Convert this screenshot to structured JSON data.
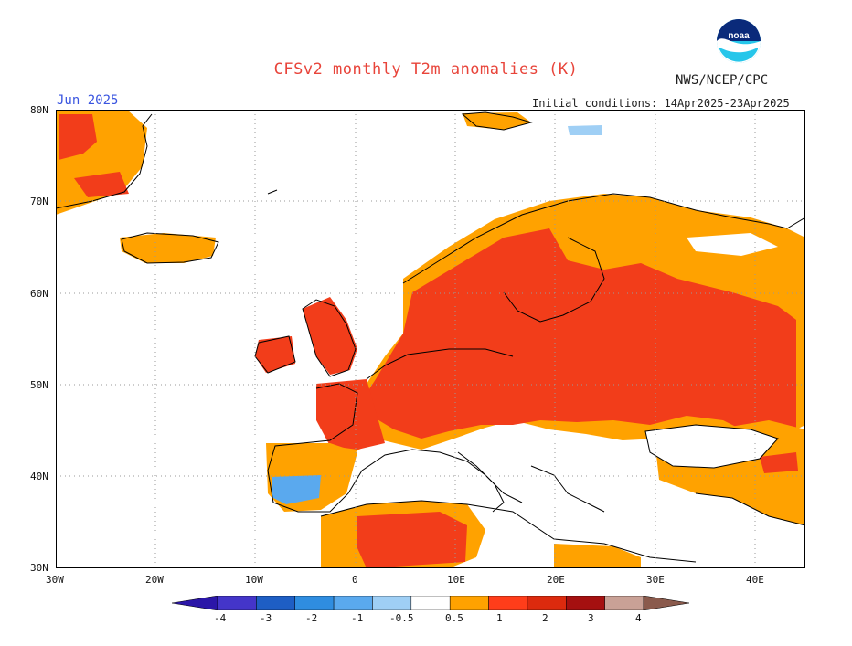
{
  "header": {
    "title": "CFSv2 monthly T2m anomalies (K)",
    "agency": "NWS/NCEP/CPC",
    "valid_month": "Jun 2025",
    "initial_conditions": "Initial conditions: 14Apr2025-23Apr2025"
  },
  "logo": {
    "text": "noaa",
    "icon": "noaa-logo-icon",
    "colors": {
      "blue": "#1f5fbf",
      "cyan": "#26c6ea",
      "navy": "#0a2a7a"
    }
  },
  "map": {
    "region": "Europe",
    "projection": "lat-lon",
    "lon_range": [
      -30,
      45
    ],
    "lat_range": [
      30,
      80
    ],
    "grid": "dotted",
    "lat_labels": [
      "80N",
      "70N",
      "60N",
      "50N",
      "40N",
      "30N"
    ],
    "lon_labels": [
      "30W",
      "20W",
      "10W",
      "0",
      "10E",
      "20E",
      "30E",
      "40E"
    ]
  },
  "colorbar": {
    "ticks": [
      "-4",
      "-3",
      "-2",
      "-1",
      "-0.5",
      "0.5",
      "1",
      "2",
      "3",
      "4"
    ],
    "colors": [
      "#2b16a8",
      "#4435c9",
      "#1e5ec4",
      "#2f8de0",
      "#5aa9ee",
      "#9fcff5",
      "#ffffff",
      "#ffa200",
      "#ff3d1a",
      "#dc2a0e",
      "#a51010",
      "#c9a196",
      "#8a5a4c"
    ]
  },
  "anomaly_fills": {
    "orange": "#ffa200",
    "red": "#f23d1a",
    "light_blue": "#9fcff5",
    "blue": "#5aa9ee"
  }
}
